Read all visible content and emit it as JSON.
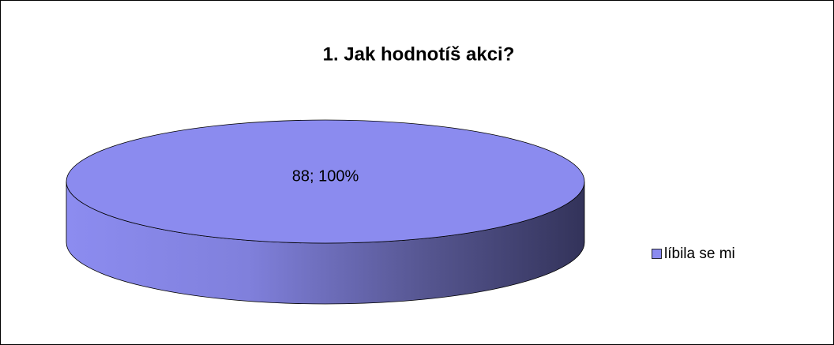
{
  "chart_data": {
    "type": "pie3d",
    "title": "1. Jak hodnotíš akci?",
    "categories": [
      "líbila se mi"
    ],
    "values": [
      88
    ],
    "value_labels": [
      "88; 100%"
    ],
    "colors": [
      "#8b8bef"
    ],
    "legend": "right"
  }
}
